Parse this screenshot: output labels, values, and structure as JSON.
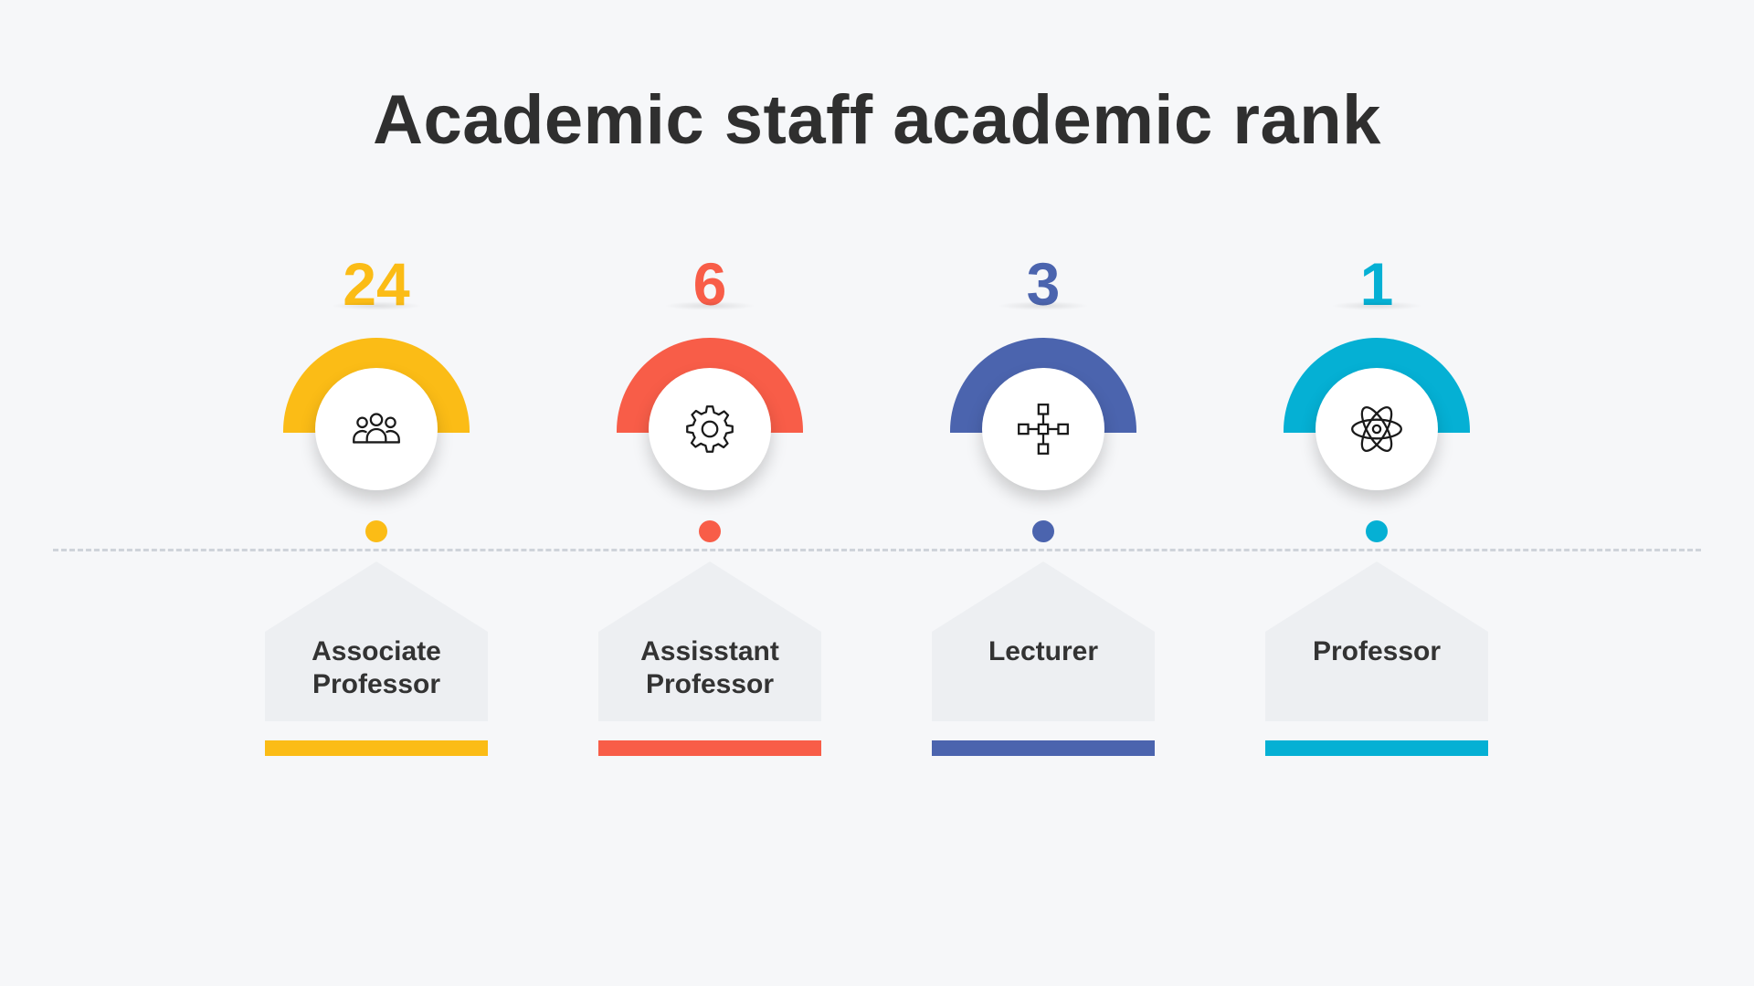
{
  "title": "Academic staff academic rank",
  "chart_data": {
    "type": "table",
    "categories": [
      "Associate Professor",
      "Assisstant Professor",
      "Lecturer",
      "Professor"
    ],
    "values": [
      24,
      6,
      3,
      1
    ]
  },
  "items": [
    {
      "count": "24",
      "label_lines": [
        "Associate",
        "Professor"
      ],
      "color": "#fbbc16",
      "icon": "people-icon"
    },
    {
      "count": "6",
      "label_lines": [
        "Assisstant",
        "Professor"
      ],
      "color": "#f85d48",
      "icon": "gear-icon"
    },
    {
      "count": "3",
      "label_lines": [
        "Lecturer",
        ""
      ],
      "color": "#4b64ae",
      "icon": "network-nodes-icon"
    },
    {
      "count": "1",
      "label_lines": [
        "Professor",
        ""
      ],
      "color": "#05b0d4",
      "icon": "atom-icon"
    }
  ]
}
